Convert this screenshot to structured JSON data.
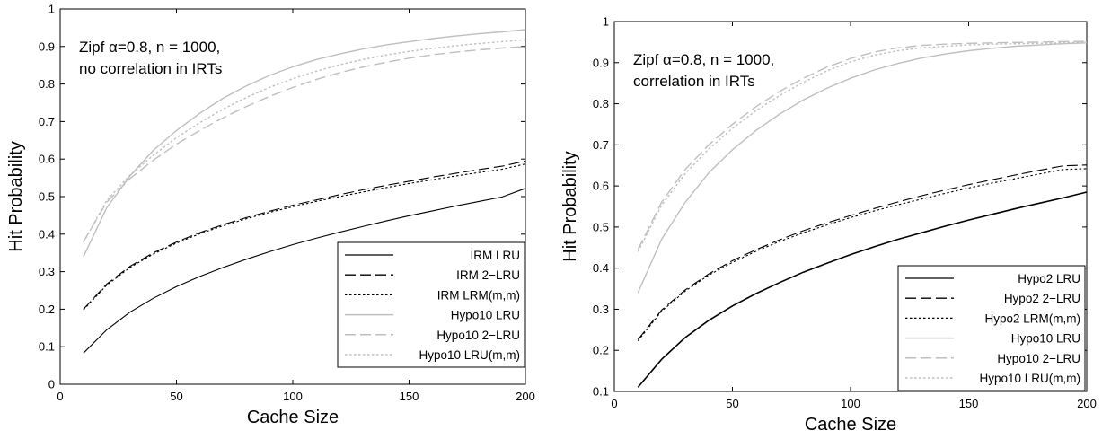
{
  "chart_data": [
    {
      "type": "line",
      "xlabel": "Cache Size",
      "ylabel": "Hit Probability",
      "xlim": [
        0,
        200
      ],
      "ylim": [
        0,
        1
      ],
      "xticks": [
        "0",
        "50",
        "100",
        "150",
        "200"
      ],
      "yticks": [
        "0",
        "0.1",
        "0.2",
        "0.3",
        "0.4",
        "0.5",
        "0.6",
        "0.7",
        "0.8",
        "0.9",
        "1"
      ],
      "annotation": [
        "Zipf α=0.8, n = 1000,",
        "no correlation in IRTs"
      ],
      "legend_position": "bottom-right",
      "x": [
        10,
        20,
        30,
        40,
        50,
        60,
        70,
        80,
        90,
        100,
        110,
        120,
        130,
        140,
        150,
        160,
        170,
        180,
        190,
        200
      ],
      "series": [
        {
          "name": "IRM LRU",
          "color": "#000000",
          "dash": "solid",
          "values": [
            0.083,
            0.145,
            0.192,
            0.229,
            0.26,
            0.287,
            0.311,
            0.333,
            0.353,
            0.372,
            0.389,
            0.405,
            0.42,
            0.435,
            0.449,
            0.462,
            0.475,
            0.487,
            0.499,
            0.522
          ]
        },
        {
          "name": "IRM 2−LRU",
          "color": "#000000",
          "dash": "longdash",
          "values": [
            0.2,
            0.267,
            0.314,
            0.35,
            0.379,
            0.404,
            0.425,
            0.444,
            0.461,
            0.477,
            0.491,
            0.505,
            0.518,
            0.53,
            0.541,
            0.552,
            0.562,
            0.572,
            0.581,
            0.595
          ]
        },
        {
          "name": "IRM LRM(m,m)",
          "color": "#000000",
          "dash": "dotted",
          "values": [
            0.198,
            0.264,
            0.311,
            0.347,
            0.376,
            0.401,
            0.422,
            0.441,
            0.458,
            0.473,
            0.487,
            0.5,
            0.512,
            0.524,
            0.535,
            0.545,
            0.555,
            0.564,
            0.573,
            0.587
          ]
        },
        {
          "name": "Hypo10 LRU",
          "color": "#bfbfbf",
          "dash": "solid",
          "values": [
            0.34,
            0.47,
            0.555,
            0.623,
            0.676,
            0.722,
            0.762,
            0.795,
            0.823,
            0.846,
            0.865,
            0.88,
            0.893,
            0.904,
            0.913,
            0.921,
            0.928,
            0.934,
            0.939,
            0.945
          ]
        },
        {
          "name": "Hypo10 2−LRU",
          "color": "#bfbfbf",
          "dash": "longdash",
          "values": [
            0.38,
            0.485,
            0.548,
            0.597,
            0.64,
            0.676,
            0.71,
            0.74,
            0.767,
            0.791,
            0.812,
            0.83,
            0.845,
            0.858,
            0.869,
            0.878,
            0.885,
            0.891,
            0.896,
            0.9
          ]
        },
        {
          "name": "Hypo10 LRU(m,m)",
          "color": "#bfbfbf",
          "dash": "dotted",
          "values": [
            0.378,
            0.49,
            0.557,
            0.61,
            0.657,
            0.697,
            0.733,
            0.764,
            0.791,
            0.814,
            0.834,
            0.851,
            0.865,
            0.877,
            0.887,
            0.895,
            0.902,
            0.908,
            0.913,
            0.918
          ]
        }
      ]
    },
    {
      "type": "line",
      "xlabel": "Cache Size",
      "ylabel": "Hit Probability",
      "xlim": [
        0,
        200
      ],
      "ylim": [
        0.1,
        1
      ],
      "xticks": [
        "0",
        "50",
        "100",
        "150",
        "200"
      ],
      "yticks": [
        "0.1",
        "0.2",
        "0.3",
        "0.4",
        "0.5",
        "0.6",
        "0.7",
        "0.8",
        "0.9",
        "1"
      ],
      "annotation": [
        "Zipf α=0.8, n = 1000,",
        "correlation in IRTs"
      ],
      "legend_position": "bottom-right",
      "x": [
        10,
        20,
        30,
        40,
        50,
        60,
        70,
        80,
        90,
        100,
        110,
        120,
        130,
        140,
        150,
        160,
        170,
        180,
        190,
        200
      ],
      "series": [
        {
          "name": "Hypo2 LRU",
          "color": "#000000",
          "dash": "solid",
          "values": [
            0.11,
            0.178,
            0.231,
            0.273,
            0.308,
            0.338,
            0.365,
            0.39,
            0.412,
            0.433,
            0.452,
            0.47,
            0.486,
            0.502,
            0.517,
            0.531,
            0.545,
            0.558,
            0.571,
            0.585
          ]
        },
        {
          "name": "Hypo2 2−LRU",
          "color": "#000000",
          "dash": "longdash",
          "values": [
            0.226,
            0.298,
            0.347,
            0.386,
            0.418,
            0.445,
            0.469,
            0.491,
            0.51,
            0.528,
            0.545,
            0.561,
            0.576,
            0.59,
            0.603,
            0.615,
            0.627,
            0.638,
            0.649,
            0.651
          ]
        },
        {
          "name": "Hypo2 LRM(m,m)",
          "color": "#000000",
          "dash": "dotted",
          "values": [
            0.223,
            0.295,
            0.344,
            0.383,
            0.414,
            0.441,
            0.465,
            0.486,
            0.505,
            0.523,
            0.539,
            0.554,
            0.568,
            0.582,
            0.595,
            0.607,
            0.618,
            0.629,
            0.64,
            0.642
          ]
        },
        {
          "name": "Hypo10 LRU",
          "color": "#bfbfbf",
          "dash": "solid",
          "values": [
            0.34,
            0.47,
            0.56,
            0.632,
            0.688,
            0.735,
            0.775,
            0.809,
            0.838,
            0.862,
            0.882,
            0.898,
            0.911,
            0.921,
            0.929,
            0.935,
            0.94,
            0.943,
            0.946,
            0.948
          ]
        },
        {
          "name": "Hypo10 2−LRU",
          "color": "#bfbfbf",
          "dash": "longdash",
          "values": [
            0.445,
            0.56,
            0.64,
            0.7,
            0.75,
            0.793,
            0.83,
            0.862,
            0.889,
            0.91,
            0.926,
            0.936,
            0.942,
            0.945,
            0.947,
            0.948,
            0.949,
            0.95,
            0.951,
            0.952
          ]
        },
        {
          "name": "Hypo10 LRU(m,m)",
          "color": "#bfbfbf",
          "dash": "dotted",
          "values": [
            0.44,
            0.553,
            0.63,
            0.69,
            0.74,
            0.783,
            0.82,
            0.852,
            0.88,
            0.902,
            0.918,
            0.929,
            0.936,
            0.94,
            0.943,
            0.945,
            0.946,
            0.947,
            0.948,
            0.949
          ]
        }
      ]
    }
  ]
}
